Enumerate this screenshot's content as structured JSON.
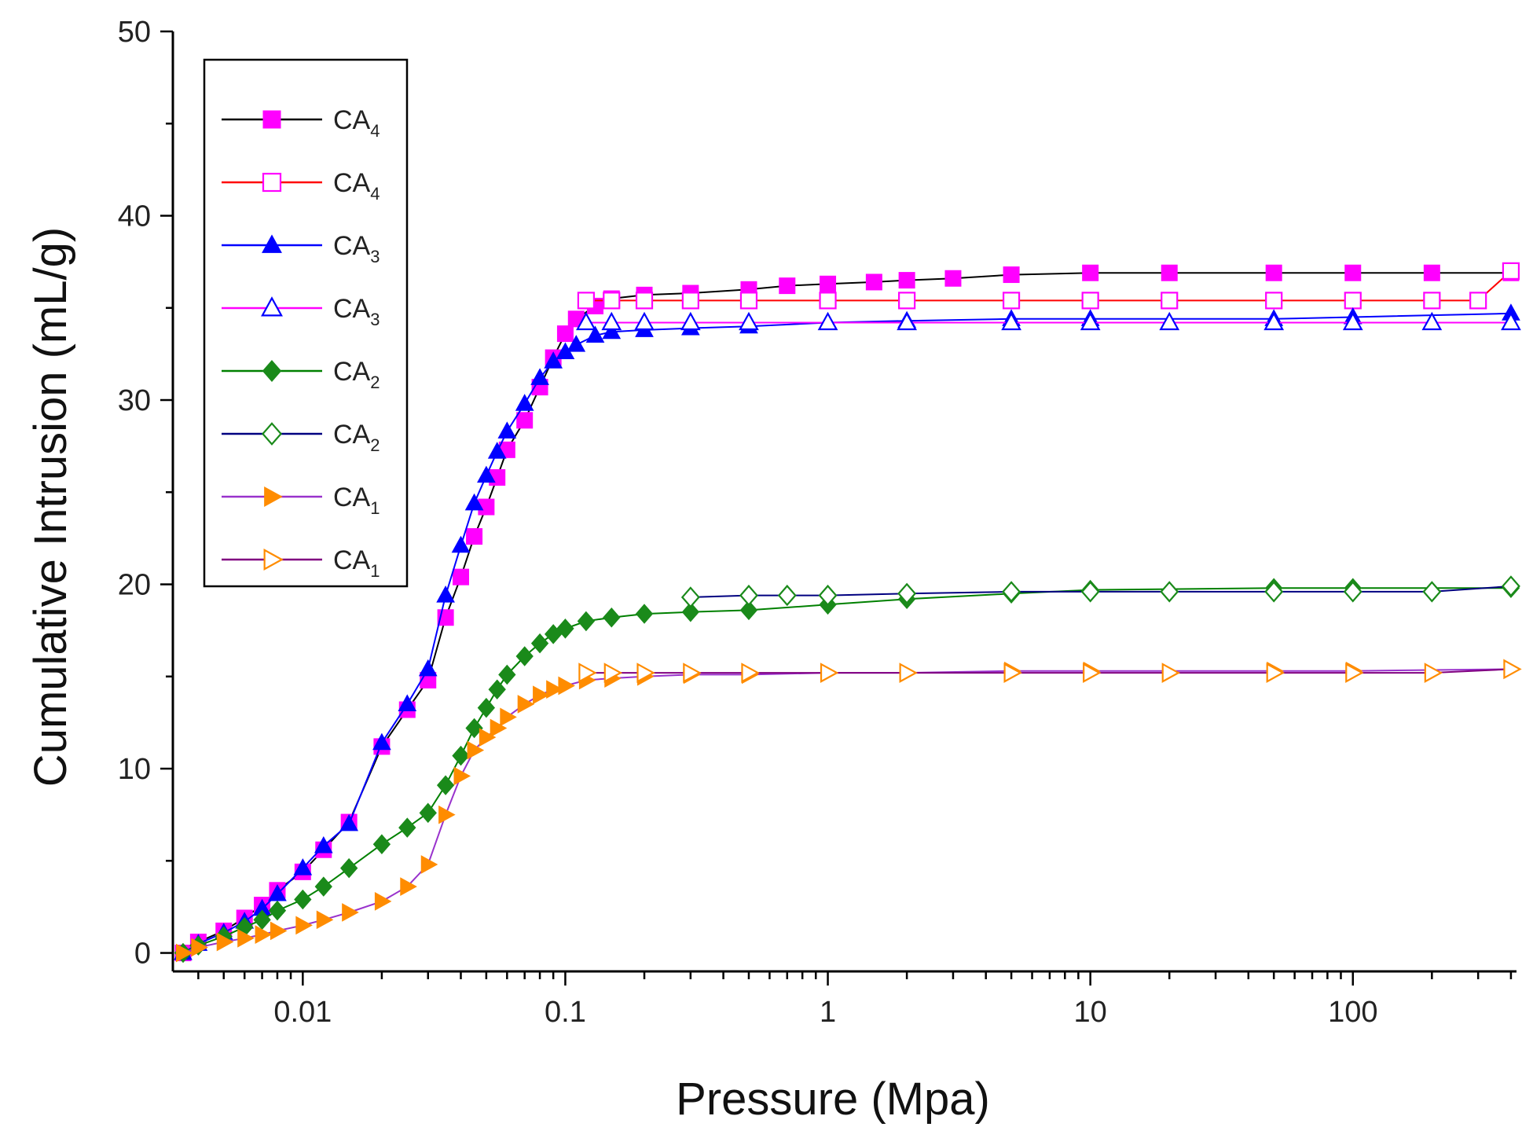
{
  "chart_data": {
    "type": "line",
    "title": "",
    "xlabel": "Pressure (Mpa)",
    "ylabel": "Cumulative Intrusion (mL/g)",
    "xscale": "log",
    "xlim": [
      0.0032,
      420
    ],
    "ylim": [
      -1,
      50
    ],
    "xticks": [
      {
        "value": 0.01,
        "label": "0.01"
      },
      {
        "value": 0.1,
        "label": "0.1"
      },
      {
        "value": 1,
        "label": "1"
      },
      {
        "value": 10,
        "label": "10"
      },
      {
        "value": 100,
        "label": "100"
      }
    ],
    "yticks": [
      {
        "value": 0,
        "label": "0"
      },
      {
        "value": 10,
        "label": "10"
      },
      {
        "value": 20,
        "label": "20"
      },
      {
        "value": 30,
        "label": "30"
      },
      {
        "value": 40,
        "label": "40"
      },
      {
        "value": 50,
        "label": "50"
      }
    ],
    "legend_position": "top-left",
    "series": [
      {
        "name": "CA",
        "subscript": "4",
        "line_color": "#000000",
        "marker_color": "#ff00ff",
        "marker": "square",
        "filled": true,
        "x": [
          0.0035,
          0.004,
          0.005,
          0.006,
          0.007,
          0.008,
          0.01,
          0.012,
          0.015,
          0.02,
          0.025,
          0.03,
          0.035,
          0.04,
          0.045,
          0.05,
          0.055,
          0.06,
          0.07,
          0.08,
          0.09,
          0.1,
          0.11,
          0.13,
          0.15,
          0.2,
          0.3,
          0.5,
          0.7,
          1,
          1.5,
          2,
          3,
          5,
          10,
          20,
          50,
          100,
          200,
          400
        ],
        "y": [
          0,
          0.6,
          1.2,
          1.9,
          2.6,
          3.4,
          4.4,
          5.6,
          7.1,
          11.2,
          13.2,
          14.8,
          18.2,
          20.4,
          22.6,
          24.2,
          25.8,
          27.3,
          28.9,
          30.7,
          32.3,
          33.6,
          34.4,
          35.1,
          35.5,
          35.7,
          35.8,
          36,
          36.2,
          36.3,
          36.4,
          36.5,
          36.6,
          36.8,
          36.9,
          36.9,
          36.9,
          36.9,
          36.9,
          36.9
        ]
      },
      {
        "name": "CA",
        "subscript": "4",
        "line_color": "#ff0000",
        "marker_color": "#ff00ff",
        "marker": "square",
        "filled": false,
        "x": [
          0.12,
          0.15,
          0.2,
          0.3,
          0.5,
          1,
          2,
          5,
          10,
          20,
          50,
          100,
          200,
          300,
          400
        ],
        "y": [
          35.4,
          35.4,
          35.4,
          35.4,
          35.4,
          35.4,
          35.4,
          35.4,
          35.4,
          35.4,
          35.4,
          35.4,
          35.4,
          35.4,
          37
        ]
      },
      {
        "name": "CA",
        "subscript": "3",
        "line_color": "#0000ff",
        "marker_color": "#0000ff",
        "marker": "triangle-up",
        "filled": true,
        "x": [
          0.0035,
          0.004,
          0.005,
          0.006,
          0.007,
          0.008,
          0.01,
          0.012,
          0.015,
          0.02,
          0.025,
          0.03,
          0.035,
          0.04,
          0.045,
          0.05,
          0.055,
          0.06,
          0.07,
          0.08,
          0.09,
          0.1,
          0.11,
          0.13,
          0.15,
          0.2,
          0.3,
          0.5,
          1,
          2,
          5,
          10,
          50,
          100,
          400
        ],
        "y": [
          0,
          0.5,
          1.1,
          1.7,
          2.4,
          3.2,
          4.6,
          5.8,
          7,
          11.4,
          13.5,
          15.4,
          19.4,
          22.1,
          24.4,
          25.9,
          27.2,
          28.3,
          29.8,
          31.2,
          32.1,
          32.6,
          33,
          33.5,
          33.7,
          33.8,
          33.9,
          34,
          34.2,
          34.3,
          34.4,
          34.4,
          34.4,
          34.5,
          34.7
        ]
      },
      {
        "name": "CA",
        "subscript": "3",
        "line_color": "#ff00ff",
        "marker_color": "#0000ff",
        "marker": "triangle-up",
        "filled": false,
        "x": [
          0.12,
          0.15,
          0.2,
          0.3,
          0.5,
          1,
          2,
          5,
          10,
          20,
          50,
          100,
          200,
          400
        ],
        "y": [
          34.2,
          34.2,
          34.2,
          34.2,
          34.2,
          34.2,
          34.2,
          34.2,
          34.2,
          34.2,
          34.2,
          34.2,
          34.2,
          34.2
        ]
      },
      {
        "name": "CA",
        "subscript": "2",
        "line_color": "#008000",
        "marker_color": "#1a8a1a",
        "marker": "diamond",
        "filled": true,
        "x": [
          0.0035,
          0.004,
          0.005,
          0.006,
          0.007,
          0.008,
          0.01,
          0.012,
          0.015,
          0.02,
          0.025,
          0.03,
          0.035,
          0.04,
          0.045,
          0.05,
          0.055,
          0.06,
          0.07,
          0.08,
          0.09,
          0.1,
          0.12,
          0.15,
          0.2,
          0.3,
          0.5,
          1,
          2,
          5,
          10,
          50,
          100,
          400
        ],
        "y": [
          0,
          0.4,
          0.9,
          1.4,
          1.8,
          2.3,
          2.9,
          3.6,
          4.6,
          5.9,
          6.8,
          7.6,
          9.1,
          10.7,
          12.2,
          13.3,
          14.3,
          15.1,
          16.1,
          16.8,
          17.3,
          17.6,
          18,
          18.2,
          18.4,
          18.5,
          18.6,
          18.9,
          19.2,
          19.5,
          19.7,
          19.8,
          19.8,
          19.8
        ]
      },
      {
        "name": "CA",
        "subscript": "2",
        "line_color": "#000080",
        "marker_color": "#1a8a1a",
        "marker": "diamond",
        "filled": false,
        "x": [
          0.3,
          0.5,
          0.7,
          1,
          2,
          5,
          10,
          20,
          50,
          100,
          200,
          400
        ],
        "y": [
          19.3,
          19.4,
          19.4,
          19.4,
          19.5,
          19.6,
          19.6,
          19.6,
          19.6,
          19.6,
          19.6,
          19.9
        ]
      },
      {
        "name": "CA",
        "subscript": "1",
        "line_color": "#9932cc",
        "marker_color": "#ff8c00",
        "marker": "triangle-right",
        "filled": true,
        "x": [
          0.0035,
          0.004,
          0.005,
          0.006,
          0.007,
          0.008,
          0.01,
          0.012,
          0.015,
          0.02,
          0.025,
          0.03,
          0.035,
          0.04,
          0.045,
          0.05,
          0.055,
          0.06,
          0.07,
          0.08,
          0.09,
          0.1,
          0.12,
          0.15,
          0.2,
          0.3,
          0.5,
          1,
          2,
          5,
          10,
          50,
          100,
          400
        ],
        "y": [
          0,
          0.3,
          0.6,
          0.8,
          1,
          1.2,
          1.5,
          1.8,
          2.2,
          2.8,
          3.6,
          4.8,
          7.5,
          9.6,
          11,
          11.7,
          12.2,
          12.8,
          13.5,
          14,
          14.3,
          14.5,
          14.8,
          14.9,
          15,
          15.1,
          15.1,
          15.2,
          15.2,
          15.3,
          15.3,
          15.3,
          15.3,
          15.4
        ]
      },
      {
        "name": "CA",
        "subscript": "1",
        "line_color": "#800080",
        "marker_color": "#ff8c00",
        "marker": "triangle-right",
        "filled": false,
        "x": [
          0.12,
          0.15,
          0.2,
          0.3,
          0.5,
          1,
          2,
          5,
          10,
          20,
          50,
          100,
          200,
          400
        ],
        "y": [
          15.2,
          15.2,
          15.2,
          15.2,
          15.2,
          15.2,
          15.2,
          15.2,
          15.2,
          15.2,
          15.2,
          15.2,
          15.2,
          15.4
        ]
      }
    ]
  }
}
